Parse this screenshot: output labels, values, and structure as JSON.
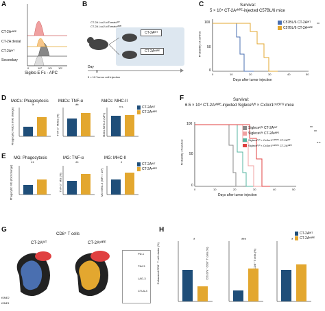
{
  "colors": {
    "blue": "#1f4e79",
    "yellow": "#e3a72f",
    "grey": "#888888",
    "pink": "#f0a0a0",
    "red": "#e04040",
    "teal": "#55b4a0"
  },
  "panels": {
    "A": {
      "letter": "A",
      "xlabel": "Siglec-E Fc - APC",
      "ticks": [
        "0",
        "10³",
        "10⁴",
        "10⁵"
      ],
      "rows": [
        "CT-2Aˢᴺᴾᴱ",
        "CT-2A desial",
        "CT-2Aᵂᵀ",
        "Secondary"
      ]
    },
    "B": {
      "letter": "B",
      "mouse_label_1": "CT-2A Luc2-tdTomatoᵂᵀ",
      "mouse_label_2": "CT-2A Luc2-tdTomatoˢᴺᴾᴱ",
      "day": "Day",
      "day0": "0",
      "injection": "5 × 10⁴ tumor cell injection",
      "box1": "CT-2Aᵂᵀ",
      "box2": "CT-2Aˢᴺᴾᴱ"
    },
    "C": {
      "letter": "C",
      "title_1": "Survival:",
      "title_2": "5 × 10⁴ CT-2Aˢᴺᴾᴱ-injected C57BL/6 mice",
      "legend": [
        "C57BL/6 CT-2Aᵂᵀ",
        "C57BL/6 CT-2Aˢᴺᴾᴱ"
      ],
      "sig": "**",
      "ylabel": "Probability of survival",
      "xlabel": "Days after tumor injection",
      "xticks": [
        "0",
        "10",
        "20",
        "30",
        "40",
        "50"
      ],
      "yticks": [
        "0",
        "50",
        "100"
      ]
    },
    "D": {
      "letter": "D",
      "titles": [
        "MdCs: Phagocytosis",
        "MdCs: TNF-α",
        "MdCs: MHC-II"
      ],
      "ylabels": [
        "Phagocytic MdCs (fold change)",
        "TNF-α⁺ MdCs (%)",
        "MdCs MHC-II (MFI)"
      ],
      "sig": [
        "*",
        "**",
        "n.s."
      ],
      "legend": [
        "CT-2Aᵂᵀ",
        "CT-2Aˢᴺᴾᴱ"
      ]
    },
    "E": {
      "letter": "E",
      "titles": [
        "MG: Phagocytosis",
        "MG: TNF-α",
        "MG: MHC-II"
      ],
      "ylabels": [
        "Phagocytic MG (fold change)",
        "TNF-α⁺ MG (%)",
        "MG MHC-II (MFI × 10³)"
      ],
      "sig": [
        "**",
        "**",
        "*"
      ],
      "legend": [
        "CT-2Aᵂᵀ",
        "CT-2Aˢᴺᴾᴱ"
      ]
    },
    "F": {
      "letter": "F",
      "title_1": "Survival:",
      "title_2": "6.5 × 10⁴ CT-2Aˢᴺᴾᴱ-injected Sigleceᶠˡ/ᶠˡ × Cx3cr1ᶜʳᵉᴱᴿᵀ² mice",
      "legend": [
        "Sigleceᶠˡ/ᶠˡ CT-2Aᵂᵀ",
        "Sigleceᶠˡ/ᶠˡ CT-2Aˢᴺᴾᴱ",
        "Sigleceᶠˡ/ᶠˡ × Cx3cr1ᶜʳᵉᴱᴿᵀ² CT-2Aᵂᵀ",
        "Sigleceᶠˡ/ᶠˡ × Cx3cr1ᶜʳᵉᴱᴿᵀ² CT-2Aˢᴺᴾᴱ"
      ],
      "sig": [
        "**",
        "**",
        "n.s."
      ],
      "ylabel": "Probability of survival",
      "xlabel": "Days after tumor injection",
      "xticks": [
        "0",
        "10",
        "20",
        "30",
        "40",
        "50"
      ],
      "yticks": [
        "0",
        "50",
        "100"
      ]
    },
    "G": {
      "letter": "G",
      "title": "CD8⁺ T cells",
      "left": "CT-2Aᵂᵀ",
      "right": "CT-2Aˢᴺᴾᴱ",
      "markers": [
        "PD-1",
        "TIM-3",
        "LAG-3",
        "CTLA-4"
      ],
      "ax_y": "tSNE2",
      "ax_x": "tSNE1"
    },
    "H": {
      "letter": "H",
      "ylabels": [
        "Exhausted CD8⁺ T cell cluster (%)",
        "CD107a⁺ CD8⁺ T cells (%)",
        "IFN-γ⁺ CD8⁺ T cells (%)"
      ],
      "sig": [
        "*",
        "***",
        "*"
      ],
      "legend": [
        "CT-2Aᵂᵀ",
        "CT-2Aˢᴺᴾᴱ"
      ]
    }
  }
}
